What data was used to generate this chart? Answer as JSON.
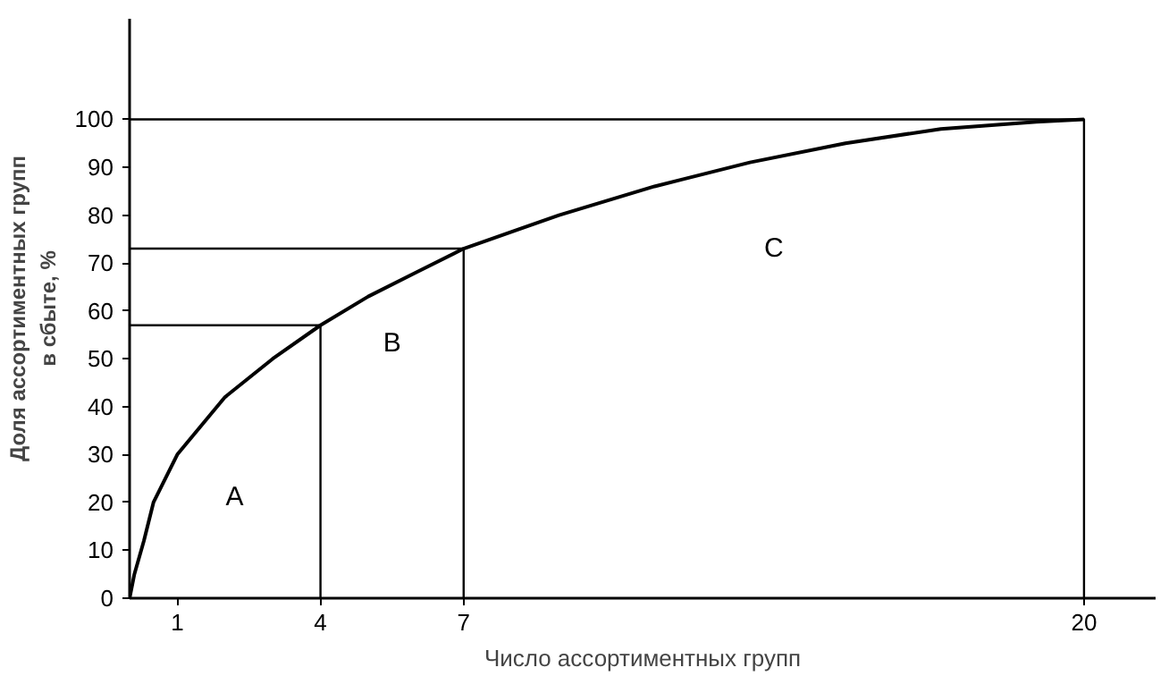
{
  "chart_data": {
    "type": "line",
    "xlabel": "Число ассортиментных групп",
    "ylabel": "Доля ассортиментных групп\nв сбыте, %",
    "xlim": [
      0,
      21.5
    ],
    "ylim": [
      0,
      121
    ],
    "xticks": [
      1,
      4,
      7,
      20
    ],
    "yticks": [
      0,
      10,
      20,
      30,
      40,
      50,
      60,
      70,
      80,
      90,
      100
    ],
    "grid": false,
    "marker": "none",
    "line_style": "solid",
    "series": [
      {
        "color": "#000000",
        "x": [
          0,
          0.1,
          0.3,
          0.5,
          1,
          2,
          3,
          4,
          5,
          6,
          7,
          9,
          11,
          13,
          15,
          17,
          19,
          20
        ],
        "values": [
          0,
          5,
          12,
          20,
          30,
          42,
          50,
          57,
          63,
          68,
          73,
          80,
          86,
          91,
          95,
          98,
          99.5,
          100
        ]
      },
      {
        "color": "#000000",
        "x": [
          0,
          4,
          4
        ],
        "values": [
          57,
          57,
          0
        ]
      },
      {
        "color": "#000000",
        "x": [
          0,
          7,
          7
        ],
        "values": [
          73,
          73,
          0
        ]
      },
      {
        "color": "#000000",
        "x": [
          0,
          20,
          20
        ],
        "values": [
          100,
          100,
          0
        ]
      }
    ],
    "annotations": [
      "A",
      "B",
      "C"
    ]
  }
}
